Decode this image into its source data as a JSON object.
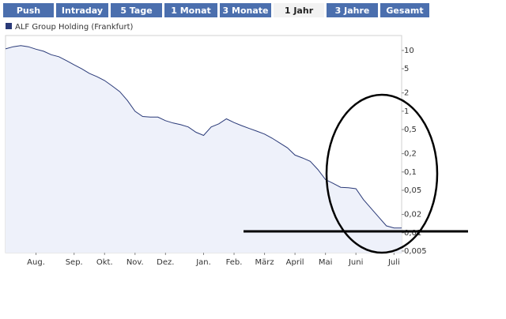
{
  "tabs": [
    {
      "label": "Push",
      "active": false
    },
    {
      "label": "Intraday",
      "active": false
    },
    {
      "label": "5 Tage",
      "active": false
    },
    {
      "label": "1 Monat",
      "active": false
    },
    {
      "label": "3 Monate",
      "active": false
    },
    {
      "label": "1 Jahr",
      "active": true
    },
    {
      "label": "3 Jahre",
      "active": false
    },
    {
      "label": "Gesamt",
      "active": false
    }
  ],
  "chart_data": {
    "type": "line",
    "log_scale": true,
    "grid": false,
    "categories": [
      null,
      null,
      null,
      null,
      "Aug.",
      null,
      null,
      null,
      null,
      "Sep.",
      null,
      null,
      null,
      "Okt.",
      null,
      null,
      null,
      "Nov.",
      null,
      null,
      null,
      "Dez.",
      null,
      null,
      null,
      null,
      "Jan.",
      null,
      null,
      null,
      "Feb.",
      null,
      null,
      null,
      "März",
      null,
      null,
      null,
      "April",
      null,
      null,
      null,
      "Mai",
      null,
      null,
      null,
      "Juni",
      null,
      null,
      null,
      null,
      "Juli",
      null
    ],
    "series": [
      {
        "name": "ALF Group Holding (Frankfurt)",
        "color": "#2a3a78",
        "values": [
          10.6,
          11.5,
          12,
          11.5,
          10.5,
          9.7,
          8.5,
          7.9,
          6.8,
          5.8,
          5.0,
          4.2,
          3.7,
          3.2,
          2.6,
          2.1,
          1.5,
          1.0,
          0.82,
          0.8,
          0.8,
          0.7,
          0.64,
          0.6,
          0.55,
          0.45,
          0.4,
          0.55,
          0.62,
          0.75,
          0.65,
          0.58,
          0.52,
          0.47,
          0.42,
          0.36,
          0.3,
          0.25,
          0.19,
          0.17,
          0.15,
          0.11,
          0.075,
          0.065,
          0.056,
          0.055,
          0.053,
          0.035,
          0.025,
          0.018,
          0.013,
          0.012,
          0.012
        ]
      }
    ],
    "ylim": [
      0.0047,
      17.6
    ],
    "yticks": [
      10,
      5,
      2,
      1,
      {
        "value": 0.5,
        "label": "0,5"
      },
      {
        "value": 0.2,
        "label": "0,2"
      },
      {
        "value": 0.1,
        "label": "0,1"
      },
      {
        "value": 0.05,
        "label": "0,05"
      },
      {
        "value": 0.02,
        "label": "0,02"
      },
      {
        "value": 0.01,
        "label": "0,01"
      },
      {
        "value": 0.005,
        "label": "0,005"
      }
    ]
  }
}
